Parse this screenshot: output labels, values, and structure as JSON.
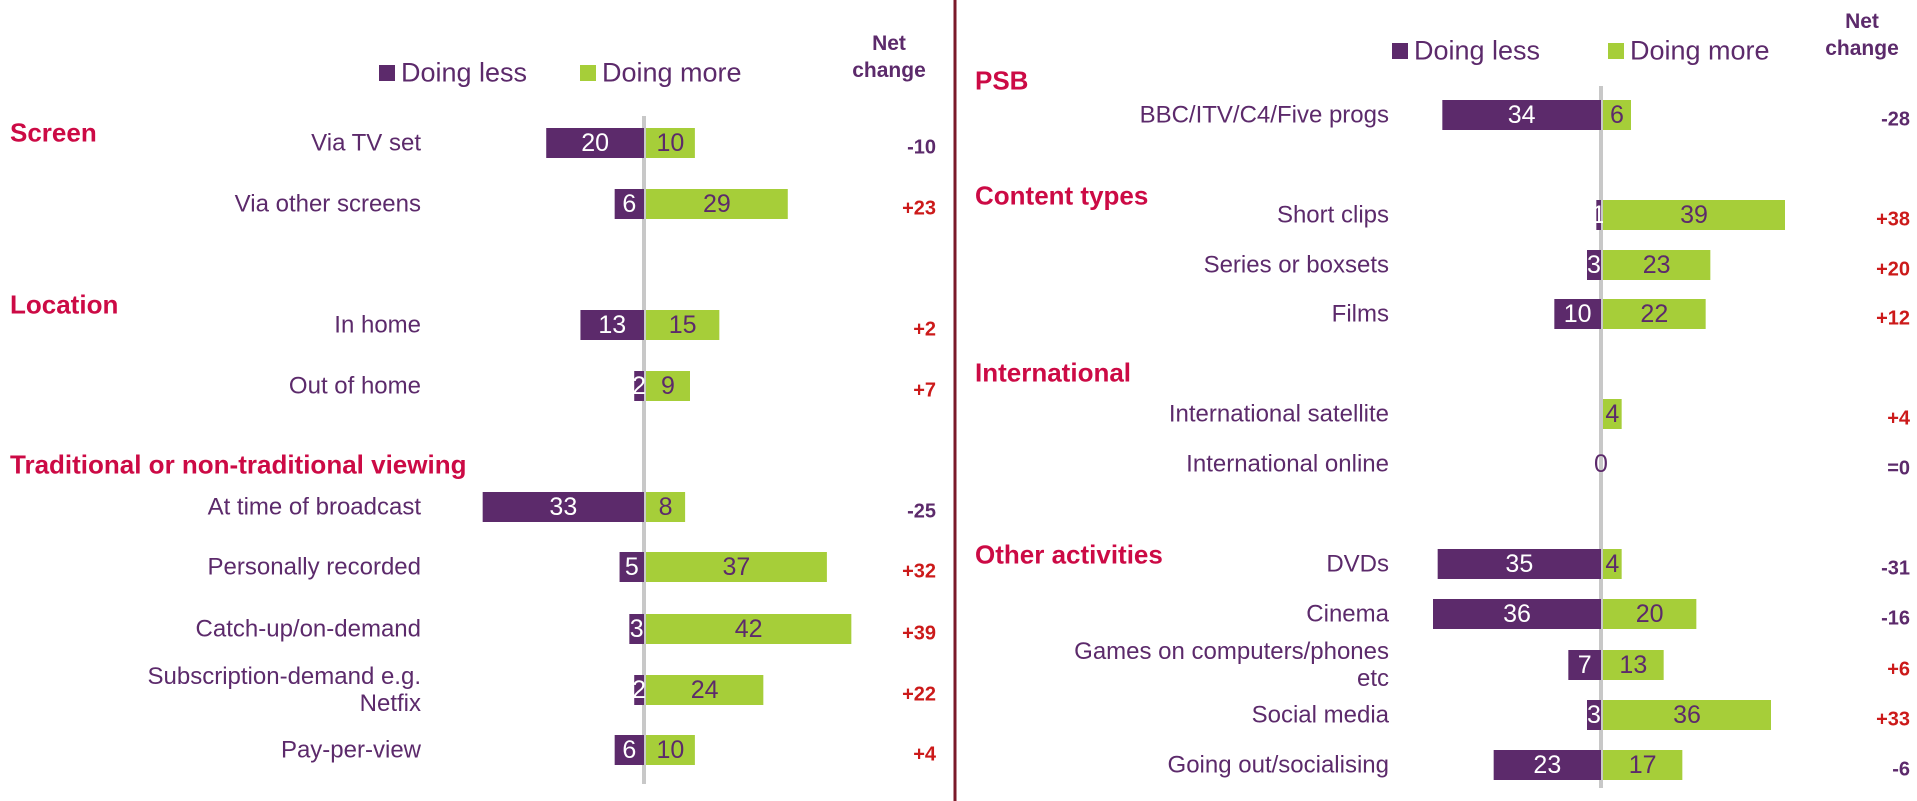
{
  "chart_data": [
    {
      "type": "diverging_bar",
      "series": [
        {
          "name": "Doing less",
          "color": "#5c2a6b"
        },
        {
          "name": "Doing more",
          "color": "#a6ce39"
        }
      ],
      "net_change_title": "Net change",
      "xlim": [
        -45,
        45
      ],
      "groups": [
        {
          "title": "Screen",
          "categories": [
            "Via TV set",
            "Via other screens"
          ],
          "doing_less": [
            20,
            6
          ],
          "doing_more": [
            10,
            29
          ],
          "net_change": [
            -10,
            23
          ],
          "net_change_labels": [
            "-10",
            "+23"
          ]
        },
        {
          "title": "Location",
          "categories": [
            "In home",
            "Out of home"
          ],
          "doing_less": [
            13,
            2
          ],
          "doing_more": [
            15,
            9
          ],
          "net_change": [
            2,
            7
          ],
          "net_change_labels": [
            "+2",
            "+7"
          ]
        },
        {
          "title": "Traditional or non-traditional viewing",
          "categories": [
            "At time of broadcast",
            "Personally recorded",
            "Catch-up/on-demand",
            "Subscription-demand e.g. Netfix",
            "Pay-per-view"
          ],
          "doing_less": [
            33,
            5,
            3,
            2,
            6
          ],
          "doing_more": [
            8,
            37,
            42,
            24,
            10
          ],
          "net_change": [
            -25,
            32,
            39,
            22,
            4
          ],
          "net_change_labels": [
            "-25",
            "+32",
            "+39",
            "+22",
            "+4"
          ]
        }
      ]
    },
    {
      "type": "diverging_bar",
      "series": [
        {
          "name": "Doing less",
          "color": "#5c2a6b"
        },
        {
          "name": "Doing more",
          "color": "#a6ce39"
        }
      ],
      "net_change_title": "Net change",
      "xlim": [
        -45,
        45
      ],
      "groups": [
        {
          "title": "PSB",
          "categories": [
            "BBC/ITV/C4/Five progs"
          ],
          "doing_less": [
            34
          ],
          "doing_more": [
            6
          ],
          "net_change": [
            -28
          ],
          "net_change_labels": [
            "-28"
          ]
        },
        {
          "title": "Content types",
          "categories": [
            "Short clips",
            "Series or boxsets",
            "Films"
          ],
          "doing_less": [
            1,
            3,
            10
          ],
          "doing_more": [
            39,
            23,
            22
          ],
          "net_change": [
            38,
            20,
            12
          ],
          "net_change_labels": [
            "+38",
            "+20",
            "+12"
          ]
        },
        {
          "title": "International",
          "categories": [
            "International satellite",
            "International online"
          ],
          "doing_less": [
            null,
            0
          ],
          "doing_more": [
            4,
            null
          ],
          "net_change": [
            4,
            0
          ],
          "net_change_labels": [
            "+4",
            "=0"
          ]
        },
        {
          "title": "Other activities",
          "categories": [
            "DVDs",
            "Cinema",
            "Games on computers/phones etc",
            "Social media",
            "Going out/socialising"
          ],
          "doing_less": [
            35,
            36,
            7,
            3,
            23
          ],
          "doing_more": [
            4,
            20,
            13,
            36,
            17
          ],
          "net_change": [
            -31,
            -16,
            6,
            33,
            -6
          ],
          "net_change_labels": [
            "-31",
            "-16",
            "+6",
            "+33",
            "-6"
          ]
        }
      ]
    }
  ]
}
